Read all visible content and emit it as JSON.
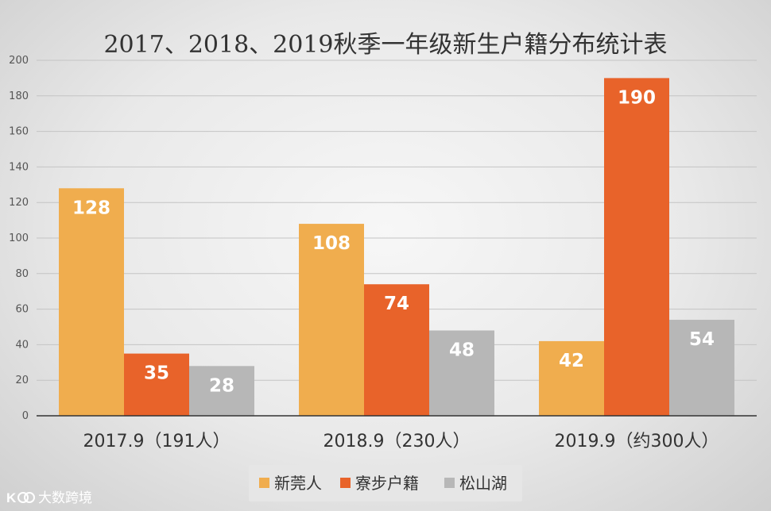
{
  "chart_data": {
    "type": "bar",
    "title": "2017、2018、2019秋季一年级新生户籍分布统计表",
    "categories": [
      "2017.9（191人）",
      "2018.9（230人）",
      "2019.9（约300人）"
    ],
    "series": [
      {
        "name": "新莞人",
        "values": [
          128,
          108,
          42
        ],
        "color": "#f0ad4e"
      },
      {
        "name": "寮步户籍",
        "values": [
          35,
          74,
          190
        ],
        "color": "#e8632a"
      },
      {
        "name": "松山湖",
        "values": [
          28,
          48,
          54
        ],
        "color": "#b7b7b7"
      }
    ],
    "ylim": [
      0,
      200
    ],
    "yticks": [
      0,
      20,
      40,
      60,
      80,
      100,
      120,
      140,
      160,
      180,
      200
    ],
    "grid": true,
    "legend_position": "bottom"
  },
  "watermark": {
    "text": "大数跨境",
    "icon": "kt-logo-icon"
  }
}
